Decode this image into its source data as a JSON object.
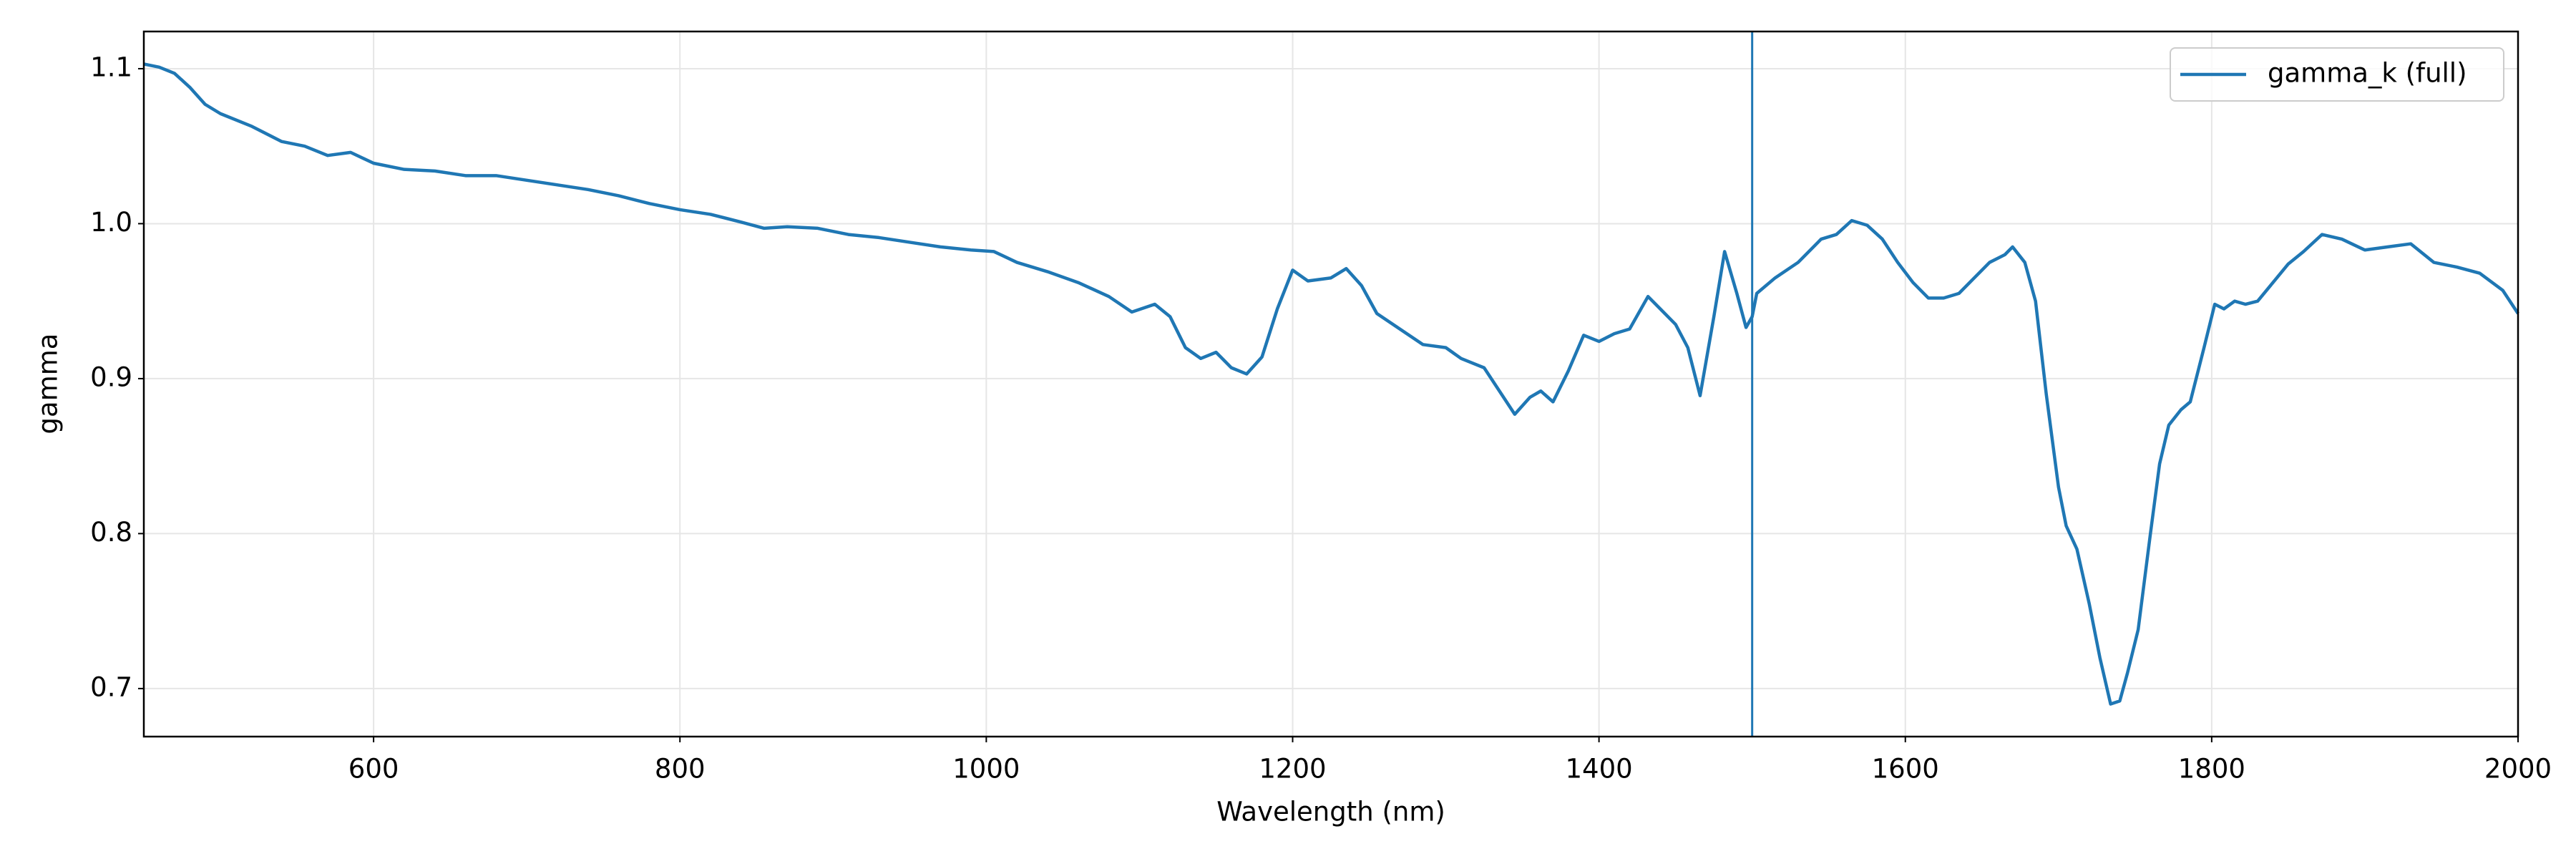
{
  "chart_data": {
    "type": "line",
    "xlabel": "Wavelength (nm)",
    "ylabel": "gamma",
    "x": [
      450,
      460,
      470,
      480,
      490,
      500,
      520,
      540,
      555,
      570,
      585,
      600,
      620,
      640,
      660,
      680,
      700,
      720,
      740,
      760,
      780,
      800,
      820,
      840,
      855,
      870,
      890,
      910,
      930,
      950,
      970,
      990,
      1005,
      1020,
      1040,
      1060,
      1080,
      1095,
      1110,
      1120,
      1130,
      1140,
      1150,
      1160,
      1170,
      1180,
      1190,
      1200,
      1210,
      1225,
      1235,
      1245,
      1255,
      1270,
      1285,
      1300,
      1310,
      1325,
      1335,
      1345,
      1355,
      1362,
      1370,
      1380,
      1390,
      1400,
      1410,
      1420,
      1432,
      1440,
      1450,
      1458,
      1466,
      1475,
      1482,
      1490,
      1496,
      1500,
      1503,
      1515,
      1530,
      1545,
      1555,
      1565,
      1575,
      1585,
      1595,
      1605,
      1615,
      1625,
      1635,
      1645,
      1655,
      1665,
      1670,
      1678,
      1685,
      1692,
      1700,
      1705,
      1712,
      1720,
      1727,
      1734,
      1740,
      1745,
      1752,
      1760,
      1766,
      1772,
      1780,
      1786,
      1795,
      1802,
      1808,
      1815,
      1822,
      1830,
      1840,
      1850,
      1860,
      1872,
      1885,
      1900,
      1915,
      1930,
      1945,
      1960,
      1975,
      1990,
      2000
    ],
    "series": [
      {
        "name": "gamma_k (full)",
        "color": "#1f77b4",
        "values": [
          1.103,
          1.101,
          1.097,
          1.088,
          1.077,
          1.071,
          1.063,
          1.053,
          1.05,
          1.044,
          1.046,
          1.039,
          1.035,
          1.034,
          1.031,
          1.031,
          1.028,
          1.025,
          1.022,
          1.018,
          1.013,
          1.009,
          1.006,
          1.001,
          0.997,
          0.998,
          0.997,
          0.993,
          0.991,
          0.988,
          0.985,
          0.983,
          0.982,
          0.975,
          0.969,
          0.962,
          0.953,
          0.943,
          0.948,
          0.94,
          0.92,
          0.913,
          0.917,
          0.907,
          0.903,
          0.914,
          0.945,
          0.97,
          0.963,
          0.965,
          0.971,
          0.96,
          0.942,
          0.932,
          0.922,
          0.92,
          0.913,
          0.907,
          0.892,
          0.877,
          0.888,
          0.892,
          0.885,
          0.905,
          0.928,
          0.924,
          0.929,
          0.932,
          0.953,
          0.945,
          0.935,
          0.92,
          0.889,
          0.94,
          0.982,
          0.955,
          0.933,
          0.94,
          0.955,
          0.965,
          0.975,
          0.99,
          0.993,
          1.002,
          0.999,
          0.99,
          0.975,
          0.962,
          0.952,
          0.952,
          0.955,
          0.965,
          0.975,
          0.98,
          0.985,
          0.975,
          0.95,
          0.89,
          0.83,
          0.805,
          0.79,
          0.755,
          0.72,
          0.69,
          0.692,
          0.71,
          0.738,
          0.8,
          0.845,
          0.87,
          0.88,
          0.885,
          0.92,
          0.948,
          0.945,
          0.95,
          0.948,
          0.95,
          0.962,
          0.974,
          0.982,
          0.993,
          0.99,
          0.983,
          0.985,
          0.987,
          0.975,
          0.972,
          0.968,
          0.957,
          0.942
        ]
      }
    ],
    "xlim": [
      450,
      2000
    ],
    "ylim": [
      0.669,
      1.124
    ],
    "xticks": [
      600,
      800,
      1000,
      1200,
      1400,
      1600,
      1800,
      2000
    ],
    "yticks": [
      0.7,
      0.8,
      0.9,
      {
        "value": 1.0,
        "label": "1.0"
      },
      1.1
    ],
    "grid": true,
    "legend": "upper right",
    "vline": {
      "x": 1500,
      "color": "#1f77b4"
    }
  }
}
